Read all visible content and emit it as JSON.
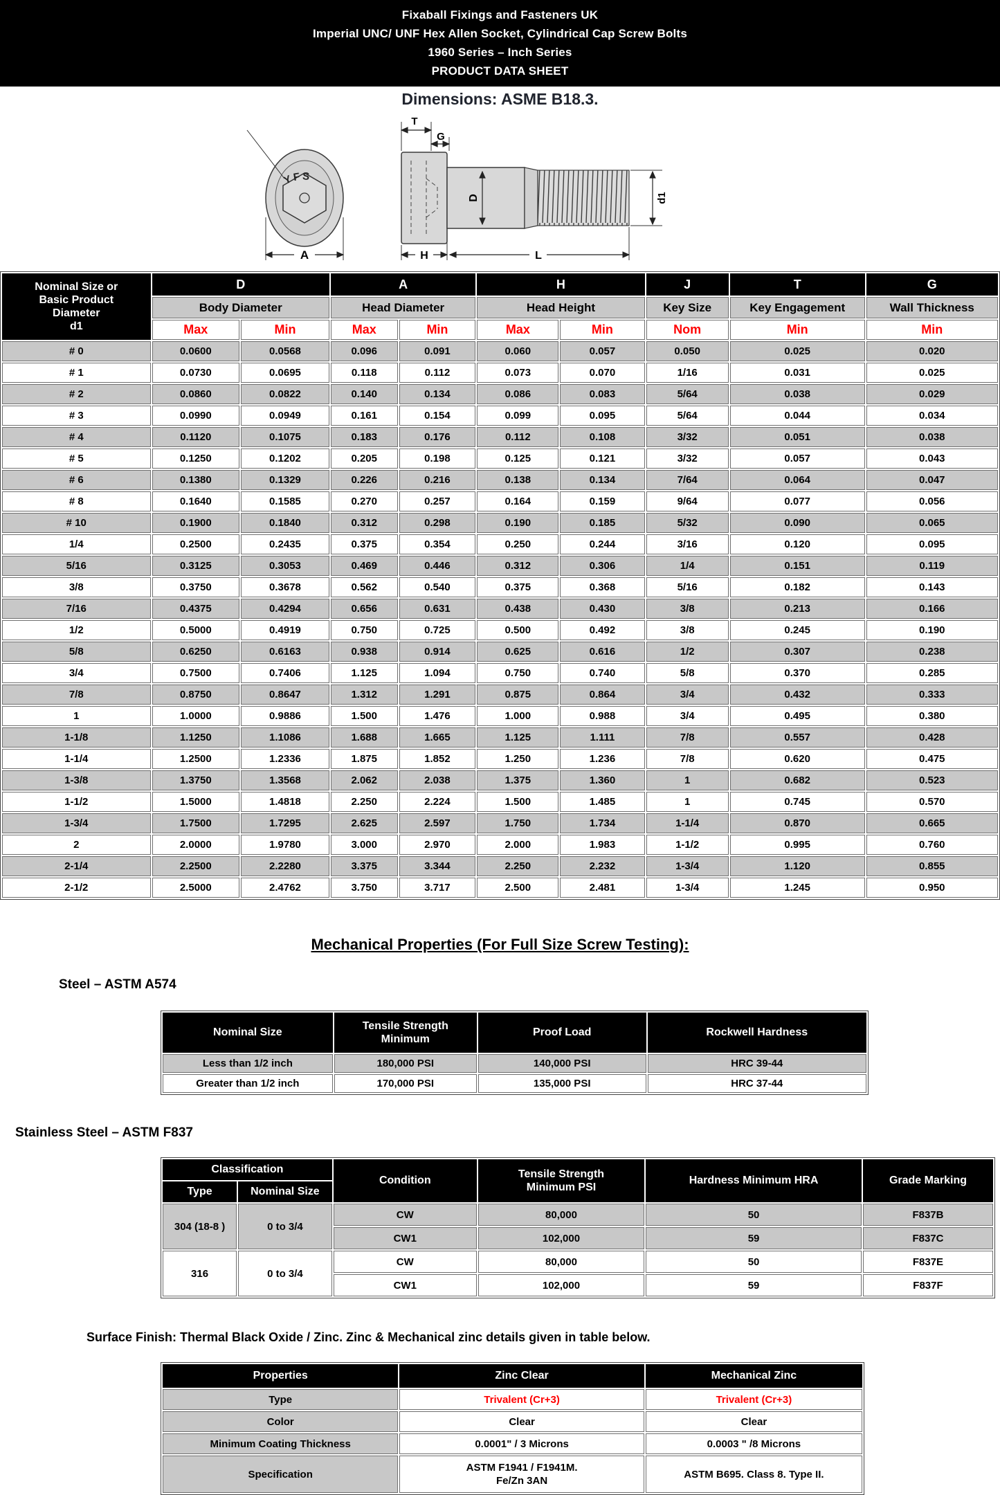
{
  "banner": {
    "lines": [
      "Fixaball Fixings and Fasteners UK",
      "Imperial UNC/ UNF Hex Allen Socket, Cylindrical Cap Screw Bolts",
      "1960 Series – Inch Series",
      "PRODUCT DATA SHEET"
    ]
  },
  "dimensions_note": "Dimensions: ASME B18.3.",
  "drawing": {
    "brand_stamp": "YFS",
    "labels": {
      "a": "A",
      "t": "T",
      "g": "G",
      "d": "D",
      "d1": "d1",
      "h": "H",
      "l": "L"
    }
  },
  "dim_table": {
    "corner": "Nominal Size or\nBasic Product\nDiameter\nd1",
    "col_groups": [
      {
        "code": "D",
        "name": "Body Diameter"
      },
      {
        "code": "A",
        "name": "Head Diameter"
      },
      {
        "code": "H",
        "name": "Head Height"
      },
      {
        "code": "J",
        "name": "Key Size"
      },
      {
        "code": "T",
        "name": "Key Engagement"
      },
      {
        "code": "G",
        "name": "Wall Thickness"
      }
    ],
    "sub_headers": [
      "Max",
      "Min",
      "Max",
      "Min",
      "Max",
      "Min",
      "Nom",
      "Min",
      "Min"
    ],
    "rows": [
      [
        "# 0",
        "0.0600",
        "0.0568",
        "0.096",
        "0.091",
        "0.060",
        "0.057",
        "0.050",
        "0.025",
        "0.020"
      ],
      [
        "# 1",
        "0.0730",
        "0.0695",
        "0.118",
        "0.112",
        "0.073",
        "0.070",
        "1/16",
        "0.031",
        "0.025"
      ],
      [
        "# 2",
        "0.0860",
        "0.0822",
        "0.140",
        "0.134",
        "0.086",
        "0.083",
        "5/64",
        "0.038",
        "0.029"
      ],
      [
        "# 3",
        "0.0990",
        "0.0949",
        "0.161",
        "0.154",
        "0.099",
        "0.095",
        "5/64",
        "0.044",
        "0.034"
      ],
      [
        "# 4",
        "0.1120",
        "0.1075",
        "0.183",
        "0.176",
        "0.112",
        "0.108",
        "3/32",
        "0.051",
        "0.038"
      ],
      [
        "# 5",
        "0.1250",
        "0.1202",
        "0.205",
        "0.198",
        "0.125",
        "0.121",
        "3/32",
        "0.057",
        "0.043"
      ],
      [
        "# 6",
        "0.1380",
        "0.1329",
        "0.226",
        "0.216",
        "0.138",
        "0.134",
        "7/64",
        "0.064",
        "0.047"
      ],
      [
        "# 8",
        "0.1640",
        "0.1585",
        "0.270",
        "0.257",
        "0.164",
        "0.159",
        "9/64",
        "0.077",
        "0.056"
      ],
      [
        "# 10",
        "0.1900",
        "0.1840",
        "0.312",
        "0.298",
        "0.190",
        "0.185",
        "5/32",
        "0.090",
        "0.065"
      ],
      [
        "1/4",
        "0.2500",
        "0.2435",
        "0.375",
        "0.354",
        "0.250",
        "0.244",
        "3/16",
        "0.120",
        "0.095"
      ],
      [
        "5/16",
        "0.3125",
        "0.3053",
        "0.469",
        "0.446",
        "0.312",
        "0.306",
        "1/4",
        "0.151",
        "0.119"
      ],
      [
        "3/8",
        "0.3750",
        "0.3678",
        "0.562",
        "0.540",
        "0.375",
        "0.368",
        "5/16",
        "0.182",
        "0.143"
      ],
      [
        "7/16",
        "0.4375",
        "0.4294",
        "0.656",
        "0.631",
        "0.438",
        "0.430",
        "3/8",
        "0.213",
        "0.166"
      ],
      [
        "1/2",
        "0.5000",
        "0.4919",
        "0.750",
        "0.725",
        "0.500",
        "0.492",
        "3/8",
        "0.245",
        "0.190"
      ],
      [
        "5/8",
        "0.6250",
        "0.6163",
        "0.938",
        "0.914",
        "0.625",
        "0.616",
        "1/2",
        "0.307",
        "0.238"
      ],
      [
        "3/4",
        "0.7500",
        "0.7406",
        "1.125",
        "1.094",
        "0.750",
        "0.740",
        "5/8",
        "0.370",
        "0.285"
      ],
      [
        "7/8",
        "0.8750",
        "0.8647",
        "1.312",
        "1.291",
        "0.875",
        "0.864",
        "3/4",
        "0.432",
        "0.333"
      ],
      [
        "1",
        "1.0000",
        "0.9886",
        "1.500",
        "1.476",
        "1.000",
        "0.988",
        "3/4",
        "0.495",
        "0.380"
      ],
      [
        "1-1/8",
        "1.1250",
        "1.1086",
        "1.688",
        "1.665",
        "1.125",
        "1.111",
        "7/8",
        "0.557",
        "0.428"
      ],
      [
        "1-1/4",
        "1.2500",
        "1.2336",
        "1.875",
        "1.852",
        "1.250",
        "1.236",
        "7/8",
        "0.620",
        "0.475"
      ],
      [
        "1-3/8",
        "1.3750",
        "1.3568",
        "2.062",
        "2.038",
        "1.375",
        "1.360",
        "1",
        "0.682",
        "0.523"
      ],
      [
        "1-1/2",
        "1.5000",
        "1.4818",
        "2.250",
        "2.224",
        "1.500",
        "1.485",
        "1",
        "0.745",
        "0.570"
      ],
      [
        "1-3/4",
        "1.7500",
        "1.7295",
        "2.625",
        "2.597",
        "1.750",
        "1.734",
        "1-1/4",
        "0.870",
        "0.665"
      ],
      [
        "2",
        "2.0000",
        "1.9780",
        "3.000",
        "2.970",
        "2.000",
        "1.983",
        "1-1/2",
        "0.995",
        "0.760"
      ],
      [
        "2-1/4",
        "2.2500",
        "2.2280",
        "3.375",
        "3.344",
        "2.250",
        "2.232",
        "1-3/4",
        "1.120",
        "0.855"
      ],
      [
        "2-1/2",
        "2.5000",
        "2.4762",
        "3.750",
        "3.717",
        "2.500",
        "2.481",
        "1-3/4",
        "1.245",
        "0.950"
      ]
    ]
  },
  "mech_heading": "Mechanical Properties (For Full Size Screw Testing):",
  "steel": {
    "title": "Steel – ASTM A574",
    "headers": [
      "Nominal Size",
      "Tensile Strength\nMinimum",
      "Proof Load",
      "Rockwell Hardness"
    ],
    "rows": [
      [
        "Less than 1/2 inch",
        "180,000 PSI",
        "140,000 PSI",
        "HRC 39-44"
      ],
      [
        "Greater than 1/2 inch",
        "170,000 PSI",
        "135,000 PSI",
        "HRC 37-44"
      ]
    ]
  },
  "stainless": {
    "title": "Stainless Steel – ASTM F837",
    "headers": {
      "classification": "Classification",
      "type": "Type",
      "nominal_size": "Nominal Size",
      "condition": "Condition",
      "tensile": "Tensile Strength\nMinimum PSI",
      "hardness": "Hardness Minimum HRA",
      "grade": "Grade Marking"
    },
    "rows": [
      {
        "type": "304 (18-8 )",
        "nominal": "0 to 3/4",
        "condition": "CW",
        "tensile": "80,000",
        "hardness": "50",
        "grade": "F837B"
      },
      {
        "condition": "CW1",
        "tensile": "102,000",
        "hardness": "59",
        "grade": "F837C"
      },
      {
        "type": "316",
        "nominal": "0 to 3/4",
        "condition": "CW",
        "tensile": "80,000",
        "hardness": "50",
        "grade": "F837E"
      },
      {
        "condition": "CW1",
        "tensile": "102,000",
        "hardness": "59",
        "grade": "F837F"
      }
    ]
  },
  "surface_note": "Surface Finish: Thermal Black Oxide / Zinc. Zinc & Mechanical zinc details given in table below.",
  "finish_table": {
    "headers": [
      "Properties",
      "Zinc Clear",
      "Mechanical Zinc"
    ],
    "rows": [
      {
        "label": "Type",
        "zinc": "Trivalent (Cr+3)",
        "mech": "Trivalent (Cr+3)"
      },
      {
        "label": "Color",
        "zinc": "Clear",
        "mech": "Clear"
      },
      {
        "label": "Minimum Coating Thickness",
        "zinc": "0.0001\" / 3 Microns",
        "mech": "0.0003 \" /8 Microns"
      },
      {
        "label": "Specification",
        "zinc": "ASTM F1941 / F1941M.\nFe/Zn 3AN",
        "mech": "ASTM B695. Class 8. Type II."
      }
    ]
  }
}
